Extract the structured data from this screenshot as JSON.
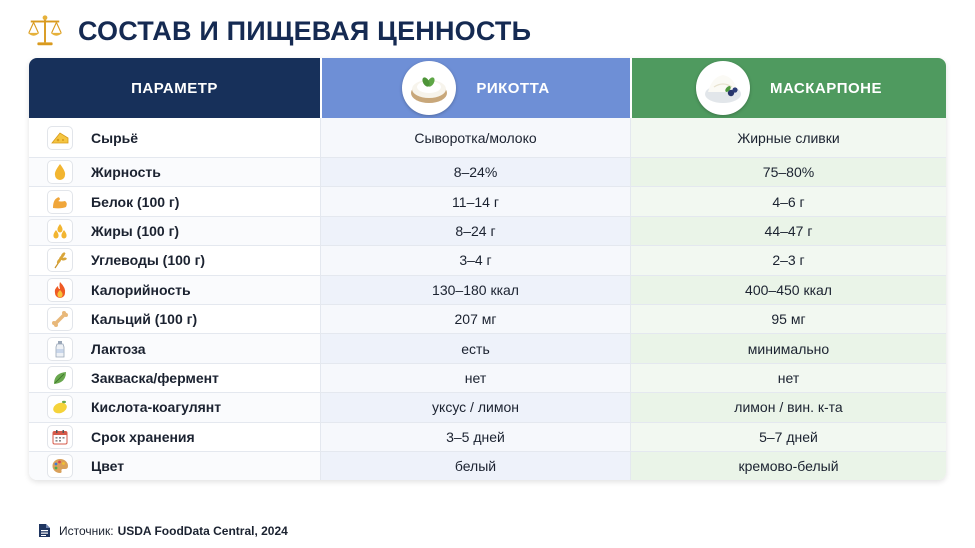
{
  "title": "СОСТАВ И ПИЩЕВАЯ ЦЕННОСТЬ",
  "title_icon": "scales-icon",
  "header": {
    "param": "ПАРАМЕТР",
    "ricotta": "РИКОТТА",
    "mascarpone": "МАСКАРПОНЕ"
  },
  "colors": {
    "title": "#152a52",
    "param_header": "#17305a",
    "ricotta_header": "#6e8fd6",
    "mascarpone_header": "#4f9a5f"
  },
  "rows": [
    {
      "icon": "cheese-icon",
      "param": "Сырьё",
      "ricotta": "Сыворотка/молоко",
      "mascarpone": "Жирные сливки"
    },
    {
      "icon": "drop-icon",
      "param": "Жирность",
      "ricotta": "8–24%",
      "mascarpone": "75–80%"
    },
    {
      "icon": "muscle-icon",
      "param": "Белок (100 г)",
      "ricotta": "11–14 г",
      "mascarpone": "4–6 г"
    },
    {
      "icon": "oil-drops-icon",
      "param": "Жиры (100 г)",
      "ricotta": "8–24 г",
      "mascarpone": "44–47 г"
    },
    {
      "icon": "wheat-icon",
      "param": "Углеводы (100 г)",
      "ricotta": "3–4 г",
      "mascarpone": "2–3 г"
    },
    {
      "icon": "flame-icon",
      "param": "Калорийность",
      "ricotta": "130–180 ккал",
      "mascarpone": "400–450 ккал"
    },
    {
      "icon": "bone-icon",
      "param": "Кальций (100 г)",
      "ricotta": "207 мг",
      "mascarpone": "95 мг"
    },
    {
      "icon": "milk-bottle-icon",
      "param": "Лактоза",
      "ricotta": "есть",
      "mascarpone": "минимально"
    },
    {
      "icon": "leaf-icon",
      "param": "Закваска/фермент",
      "ricotta": "нет",
      "mascarpone": "нет"
    },
    {
      "icon": "lemon-icon",
      "param": "Кислота-коагулянт",
      "ricotta": "уксус / лимон",
      "mascarpone": "лимон / вин. к-та"
    },
    {
      "icon": "calendar-icon",
      "param": "Срок хранения",
      "ricotta": "3–5 дней",
      "mascarpone": "5–7 дней"
    },
    {
      "icon": "palette-icon",
      "param": "Цвет",
      "ricotta": "белый",
      "mascarpone": "кремово-белый"
    }
  ],
  "source": {
    "label": "Источник:",
    "text": "USDA FoodData Central, 2024"
  }
}
